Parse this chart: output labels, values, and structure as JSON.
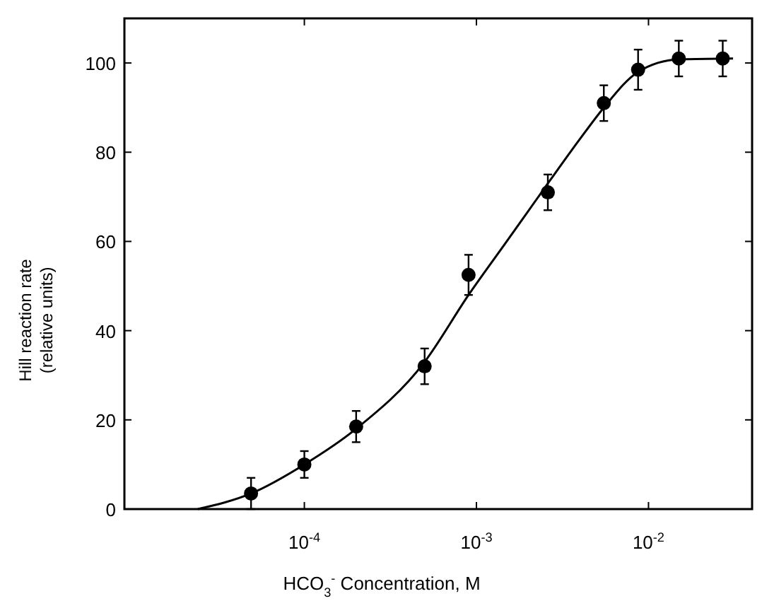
{
  "chart_data": {
    "type": "scatter",
    "xlabel": "HCO$_{3}$$^{-}$  Concentration, M",
    "ylabel": "Hill reaction rate\n(relative units)",
    "log": "x",
    "xlim": [
      9e-06,
      0.04
    ],
    "ylim": [
      0,
      110
    ],
    "xticks": [
      {
        "value": 0.0001,
        "label": "10$^{-4}$"
      },
      {
        "value": 0.001,
        "label": "10$^{-3}$"
      },
      {
        "value": 0.01,
        "label": "10$^{-2}$"
      }
    ],
    "yticks": [
      0,
      20,
      40,
      60,
      80,
      100
    ],
    "grid": false,
    "series": [
      {
        "color": "#000000",
        "marker": "circle",
        "x": [
          4.9e-05,
          0.0001,
          0.0002,
          0.0005,
          0.0009,
          0.0026,
          0.0055,
          0.0087,
          0.015,
          0.027
        ],
        "values": [
          3.5,
          10,
          18.5,
          32,
          52.5,
          71,
          91,
          98.5,
          101,
          101
        ],
        "errors": [
          3.5,
          3,
          3.5,
          4,
          4.5,
          4,
          4,
          4.5,
          4,
          4
        ]
      },
      {
        "type": "line",
        "color": "#000000",
        "marker": "none",
        "line_style": "solid",
        "x": [
          2.4e-05,
          4.9e-05,
          0.0001,
          0.0002,
          0.0005,
          0.0009,
          0.0015,
          0.0026,
          0.004,
          0.0055,
          0.0087,
          0.015,
          0.031
        ],
        "values": [
          0,
          3.5,
          10,
          18,
          33,
          48,
          60,
          73,
          83,
          90,
          98,
          100.8,
          101
        ]
      }
    ]
  }
}
